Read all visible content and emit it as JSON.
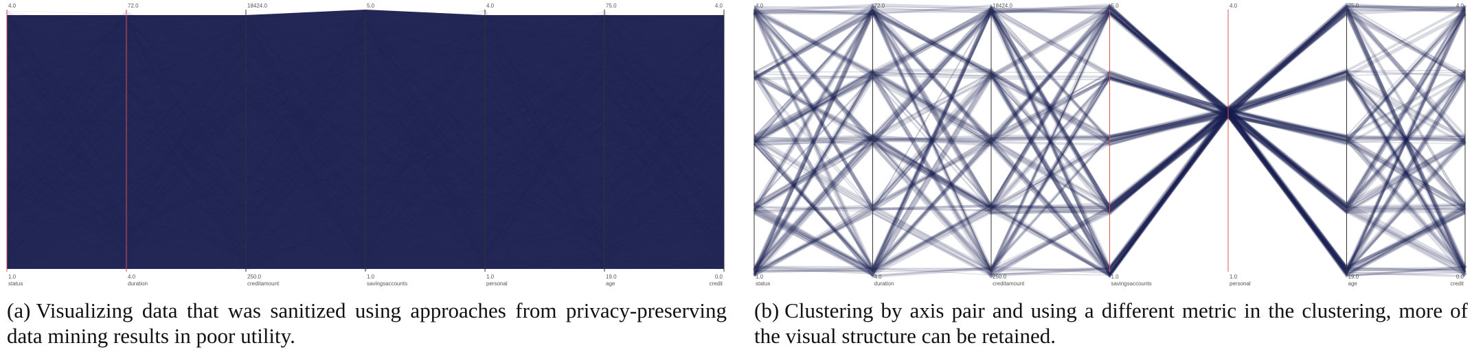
{
  "figure": {
    "panels": [
      {
        "id": "a",
        "tag": "(a)",
        "caption": "Visualizing data that was sanitized using approaches from privacy-preserving data mining results in poor utility.",
        "axes": [
          {
            "name": "status",
            "max": "4.0",
            "min": "1.0",
            "color": "#d9534f"
          },
          {
            "name": "duration",
            "max": "72.0",
            "min": "4.0",
            "color": "#d9534f"
          },
          {
            "name": "creditamount",
            "max": "18424.0",
            "min": "250.0",
            "color": "#333333"
          },
          {
            "name": "savingsaccounts",
            "max": "5.0",
            "min": "1.0",
            "color": "#333333"
          },
          {
            "name": "personal",
            "max": "4.0",
            "min": "1.0",
            "color": "#333333"
          },
          {
            "name": "age",
            "max": "75.0",
            "min": "19.0",
            "color": "#333333"
          },
          {
            "name": "credit",
            "max": "4.0",
            "min": "0.0",
            "color": "#333333"
          }
        ]
      },
      {
        "id": "b",
        "tag": "(b)",
        "caption": "Clustering by axis pair and using a different metric in the clustering, more of the visual structure can be retained.",
        "axes": [
          {
            "name": "status",
            "max": "4.0",
            "min": "1.0",
            "color": "#333333"
          },
          {
            "name": "duration",
            "max": "72.0",
            "min": "4.0",
            "color": "#333333"
          },
          {
            "name": "creditamount",
            "max": "18424.0",
            "min": "250.0",
            "color": "#333333"
          },
          {
            "name": "savingsaccounts",
            "max": "5.0",
            "min": "1.0",
            "color": "#d9534f"
          },
          {
            "name": "personal",
            "max": "4.0",
            "min": "1.0",
            "color": "#d9534f"
          },
          {
            "name": "age",
            "max": "75.0",
            "min": "19.0",
            "color": "#333333"
          },
          {
            "name": "credit",
            "max": "4.0",
            "min": "0.0",
            "color": "#333333"
          }
        ]
      }
    ],
    "line_color": "#1b2050"
  },
  "chart_data": [
    {
      "type": "parallel-coordinates",
      "axes": [
        "status",
        "duration",
        "creditamount",
        "savingsaccounts",
        "personal",
        "age",
        "credit"
      ],
      "ranges": {
        "status": [
          1.0,
          4.0
        ],
        "duration": [
          4.0,
          72.0
        ],
        "creditamount": [
          250.0,
          18424.0
        ],
        "savingsaccounts": [
          1.0,
          5.0
        ],
        "personal": [
          1.0,
          4.0
        ],
        "age": [
          19.0,
          75.0
        ],
        "credit": [
          0.0,
          4.0
        ]
      },
      "rendering": "dense-opaque"
    },
    {
      "type": "parallel-coordinates",
      "axes": [
        "status",
        "duration",
        "creditamount",
        "savingsaccounts",
        "personal",
        "age",
        "credit"
      ],
      "ranges": {
        "status": [
          1.0,
          4.0
        ],
        "duration": [
          4.0,
          72.0
        ],
        "creditamount": [
          250.0,
          18424.0
        ],
        "savingsaccounts": [
          1.0,
          5.0
        ],
        "personal": [
          1.0,
          4.0
        ],
        "age": [
          19.0,
          75.0
        ],
        "credit": [
          0.0,
          4.0
        ]
      },
      "rendering": "clustered-translucent"
    }
  ]
}
